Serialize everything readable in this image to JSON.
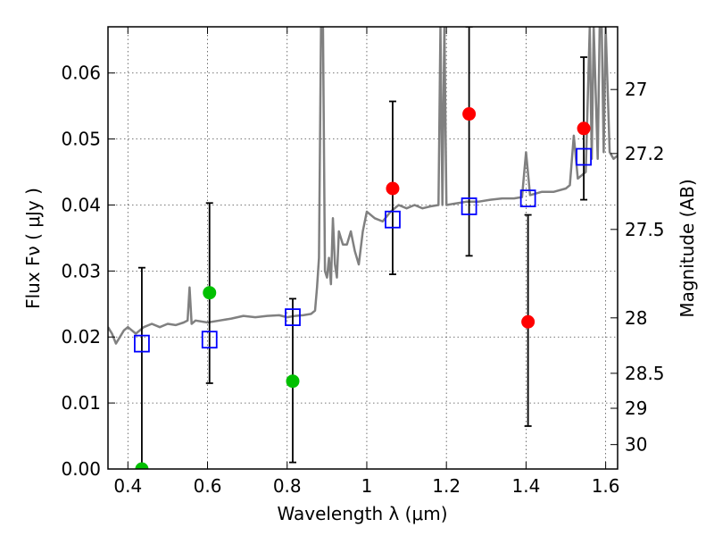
{
  "chart_data": {
    "type": "scatter",
    "title": "",
    "xlabel": "Wavelength  λ (μm)",
    "ylabel": "Flux  Fν  ( μJy )",
    "y2label": "Magnitude (AB)",
    "xlim": [
      0.35,
      1.63
    ],
    "ylim": [
      0.0,
      0.067
    ],
    "grid": true,
    "x_ticks": [
      0.4,
      0.6,
      0.8,
      1.0,
      1.2,
      1.4,
      1.6
    ],
    "x_tick_labels": [
      "0.4",
      "0.6",
      "0.8",
      "1",
      "1.2",
      "1.4",
      "1.6"
    ],
    "y_ticks": [
      0.0,
      0.01,
      0.02,
      0.03,
      0.04,
      0.05,
      0.06
    ],
    "y_tick_labels": [
      "0.00",
      "0.01",
      "0.02",
      "0.03",
      "0.04",
      "0.05",
      "0.06"
    ],
    "y2_ticks": [
      {
        "label": "27",
        "flux": 0.0575
      },
      {
        "label": "27.2",
        "flux": 0.0478
      },
      {
        "label": "27.5",
        "flux": 0.0363
      },
      {
        "label": "28",
        "flux": 0.0229
      },
      {
        "label": "28.5",
        "flux": 0.0145
      },
      {
        "label": "29",
        "flux": 0.0092
      },
      {
        "label": "30",
        "flux": 0.0037
      }
    ],
    "colors": {
      "model": "#808080",
      "observed_optical": "#00c000",
      "observed_ir": "#ff0000",
      "synthetic": "#0000ff",
      "errorbar": "#000000",
      "grid": "#b0b0b0"
    },
    "model_spectrum": {
      "x": [
        0.35,
        0.36,
        0.37,
        0.38,
        0.39,
        0.4,
        0.42,
        0.44,
        0.46,
        0.48,
        0.5,
        0.52,
        0.54,
        0.55,
        0.555,
        0.56,
        0.57,
        0.6,
        0.63,
        0.66,
        0.69,
        0.72,
        0.75,
        0.78,
        0.8,
        0.82,
        0.84,
        0.86,
        0.87,
        0.875,
        0.88,
        0.885,
        0.89,
        0.895,
        0.9,
        0.905,
        0.91,
        0.915,
        0.92,
        0.925,
        0.93,
        0.94,
        0.95,
        0.96,
        0.97,
        0.98,
        0.99,
        1.0,
        1.02,
        1.04,
        1.06,
        1.08,
        1.1,
        1.12,
        1.14,
        1.16,
        1.18,
        1.185,
        1.19,
        1.195,
        1.2,
        1.22,
        1.25,
        1.28,
        1.31,
        1.34,
        1.37,
        1.39,
        1.4,
        1.41,
        1.44,
        1.47,
        1.5,
        1.51,
        1.52,
        1.53,
        1.54,
        1.55,
        1.56,
        1.565,
        1.57,
        1.58,
        1.585,
        1.59,
        1.595,
        1.6,
        1.61,
        1.62,
        1.63
      ],
      "y": [
        0.0215,
        0.0205,
        0.019,
        0.02,
        0.021,
        0.0215,
        0.0205,
        0.0215,
        0.022,
        0.0215,
        0.022,
        0.0218,
        0.0222,
        0.0225,
        0.0275,
        0.022,
        0.0225,
        0.0222,
        0.0225,
        0.0228,
        0.0232,
        0.023,
        0.0232,
        0.0233,
        0.023,
        0.0232,
        0.0233,
        0.0235,
        0.024,
        0.0275,
        0.032,
        0.067,
        0.067,
        0.03,
        0.029,
        0.032,
        0.028,
        0.038,
        0.031,
        0.029,
        0.036,
        0.034,
        0.034,
        0.036,
        0.033,
        0.031,
        0.036,
        0.039,
        0.038,
        0.0375,
        0.039,
        0.04,
        0.0395,
        0.04,
        0.0395,
        0.0398,
        0.04,
        0.067,
        0.04,
        0.067,
        0.04,
        0.0402,
        0.0405,
        0.0405,
        0.0408,
        0.041,
        0.041,
        0.0412,
        0.048,
        0.0415,
        0.042,
        0.042,
        0.0425,
        0.043,
        0.0505,
        0.044,
        0.0445,
        0.045,
        0.067,
        0.047,
        0.067,
        0.047,
        0.067,
        0.067,
        0.048,
        0.067,
        0.048,
        0.047,
        0.0475
      ]
    },
    "observed_optical": {
      "x": [
        0.435,
        0.605,
        0.814
      ],
      "y": [
        0.0,
        0.0267,
        0.0133
      ]
    },
    "observed_ir": {
      "x": [
        1.065,
        1.257,
        1.405,
        1.545
      ],
      "y": [
        0.0425,
        0.0538,
        0.0223,
        0.0516
      ]
    },
    "synthetic": {
      "x": [
        0.435,
        0.605,
        0.814,
        1.065,
        1.257,
        1.405,
        1.545
      ],
      "y": [
        0.019,
        0.0196,
        0.023,
        0.0378,
        0.0398,
        0.041,
        0.0473
      ]
    },
    "errorbars": {
      "x": [
        0.435,
        0.605,
        0.814,
        1.065,
        1.257,
        1.405,
        1.545
      ],
      "low": [
        0.0,
        0.013,
        0.001,
        0.0295,
        0.0323,
        0.0065,
        0.0408
      ],
      "high": [
        0.0305,
        0.0403,
        0.0258,
        0.0557,
        0.067,
        0.0385,
        0.0624
      ]
    }
  }
}
